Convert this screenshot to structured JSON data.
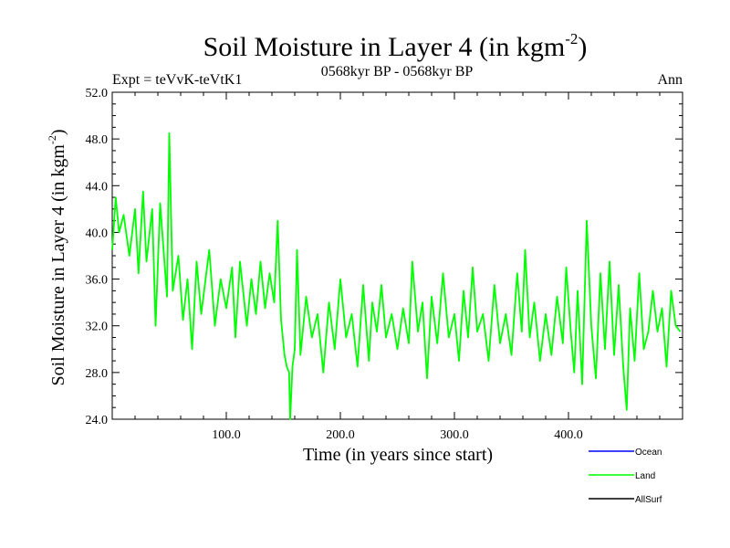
{
  "chart_data": {
    "type": "line",
    "title": "Soil Moisture in Layer 4 (in kgm",
    "title_sup": "-2",
    "title_close": ")",
    "subtitle": "0568kyr BP - 0568kyr BP",
    "left_label": "Expt = teVvK-teVtK1",
    "right_label": "Ann",
    "xlabel": "Time (in years since start)",
    "ylabel": "Soil Moisture in Layer 4 (in kgm",
    "ylabel_sup": "-2",
    "ylabel_close": ")",
    "xlim": [
      0,
      500
    ],
    "ylim": [
      24.0,
      52.0
    ],
    "xticks": [
      100,
      200,
      300,
      400
    ],
    "xtick_labels": [
      "100.0",
      "200.0",
      "300.0",
      "400.0"
    ],
    "yticks": [
      24,
      28,
      32,
      36,
      40,
      44,
      48,
      52
    ],
    "ytick_labels": [
      "24.0",
      "28.0",
      "32.0",
      "36.0",
      "40.0",
      "44.0",
      "48.0",
      "52.0"
    ],
    "legend": [
      {
        "name": "Ocean",
        "color": "#0000ff"
      },
      {
        "name": "Land",
        "color": "#00ff00"
      },
      {
        "name": "AllSurf",
        "color": "#000000"
      }
    ],
    "series": [
      {
        "name": "Land",
        "color": "#00ff00",
        "x": [
          0,
          3,
          6,
          10,
          15,
          20,
          23,
          27,
          30,
          35,
          38,
          42,
          48,
          50,
          53,
          58,
          62,
          66,
          70,
          74,
          78,
          85,
          90,
          95,
          100,
          105,
          108,
          112,
          118,
          122,
          126,
          130,
          134,
          138,
          142,
          145,
          148,
          151,
          153,
          155,
          156,
          158,
          160,
          162,
          165,
          170,
          175,
          180,
          185,
          190,
          195,
          200,
          205,
          210,
          215,
          220,
          225,
          228,
          232,
          236,
          240,
          245,
          250,
          255,
          260,
          263,
          268,
          272,
          276,
          280,
          285,
          290,
          295,
          300,
          304,
          308,
          312,
          316,
          320,
          325,
          330,
          335,
          340,
          345,
          350,
          355,
          359,
          362,
          366,
          370,
          375,
          380,
          385,
          390,
          395,
          398,
          402,
          405,
          408,
          412,
          416,
          420,
          424,
          428,
          432,
          436,
          440,
          444,
          448,
          451,
          454,
          458,
          462,
          466,
          470,
          474,
          478,
          482,
          486,
          490,
          494,
          498
        ],
        "y": [
          38.5,
          43.0,
          40.0,
          41.5,
          38.0,
          42.0,
          36.5,
          43.5,
          37.5,
          42.0,
          32.0,
          42.5,
          34.5,
          48.5,
          35.0,
          38.0,
          32.5,
          36.0,
          30.0,
          37.5,
          33.0,
          38.5,
          32.0,
          36.0,
          33.5,
          37.0,
          31.0,
          37.5,
          32.0,
          36.0,
          33.0,
          37.5,
          33.5,
          36.5,
          34.0,
          41.0,
          32.5,
          29.5,
          28.5,
          28.0,
          24.0,
          28.5,
          30.0,
          38.5,
          29.5,
          34.5,
          31.0,
          33.0,
          28.0,
          34.0,
          30.0,
          36.0,
          31.0,
          33.0,
          28.5,
          35.5,
          29.0,
          34.0,
          31.5,
          35.5,
          31.0,
          33.0,
          30.0,
          33.5,
          30.5,
          37.5,
          31.5,
          34.0,
          27.5,
          34.5,
          30.5,
          36.5,
          31.0,
          33.0,
          29.0,
          35.0,
          31.0,
          37.0,
          31.5,
          33.0,
          29.0,
          35.5,
          30.5,
          33.0,
          29.5,
          36.5,
          31.5,
          38.5,
          31.0,
          34.0,
          29.0,
          33.0,
          29.5,
          34.5,
          30.5,
          37.0,
          31.5,
          28.0,
          35.0,
          27.0,
          41.0,
          32.0,
          27.5,
          36.5,
          30.0,
          37.5,
          29.5,
          35.5,
          28.5,
          24.8,
          33.5,
          29.0,
          36.5,
          30.0,
          31.5,
          35.0,
          31.5,
          33.5,
          28.5,
          35.0,
          32.0,
          31.5
        ]
      }
    ]
  }
}
